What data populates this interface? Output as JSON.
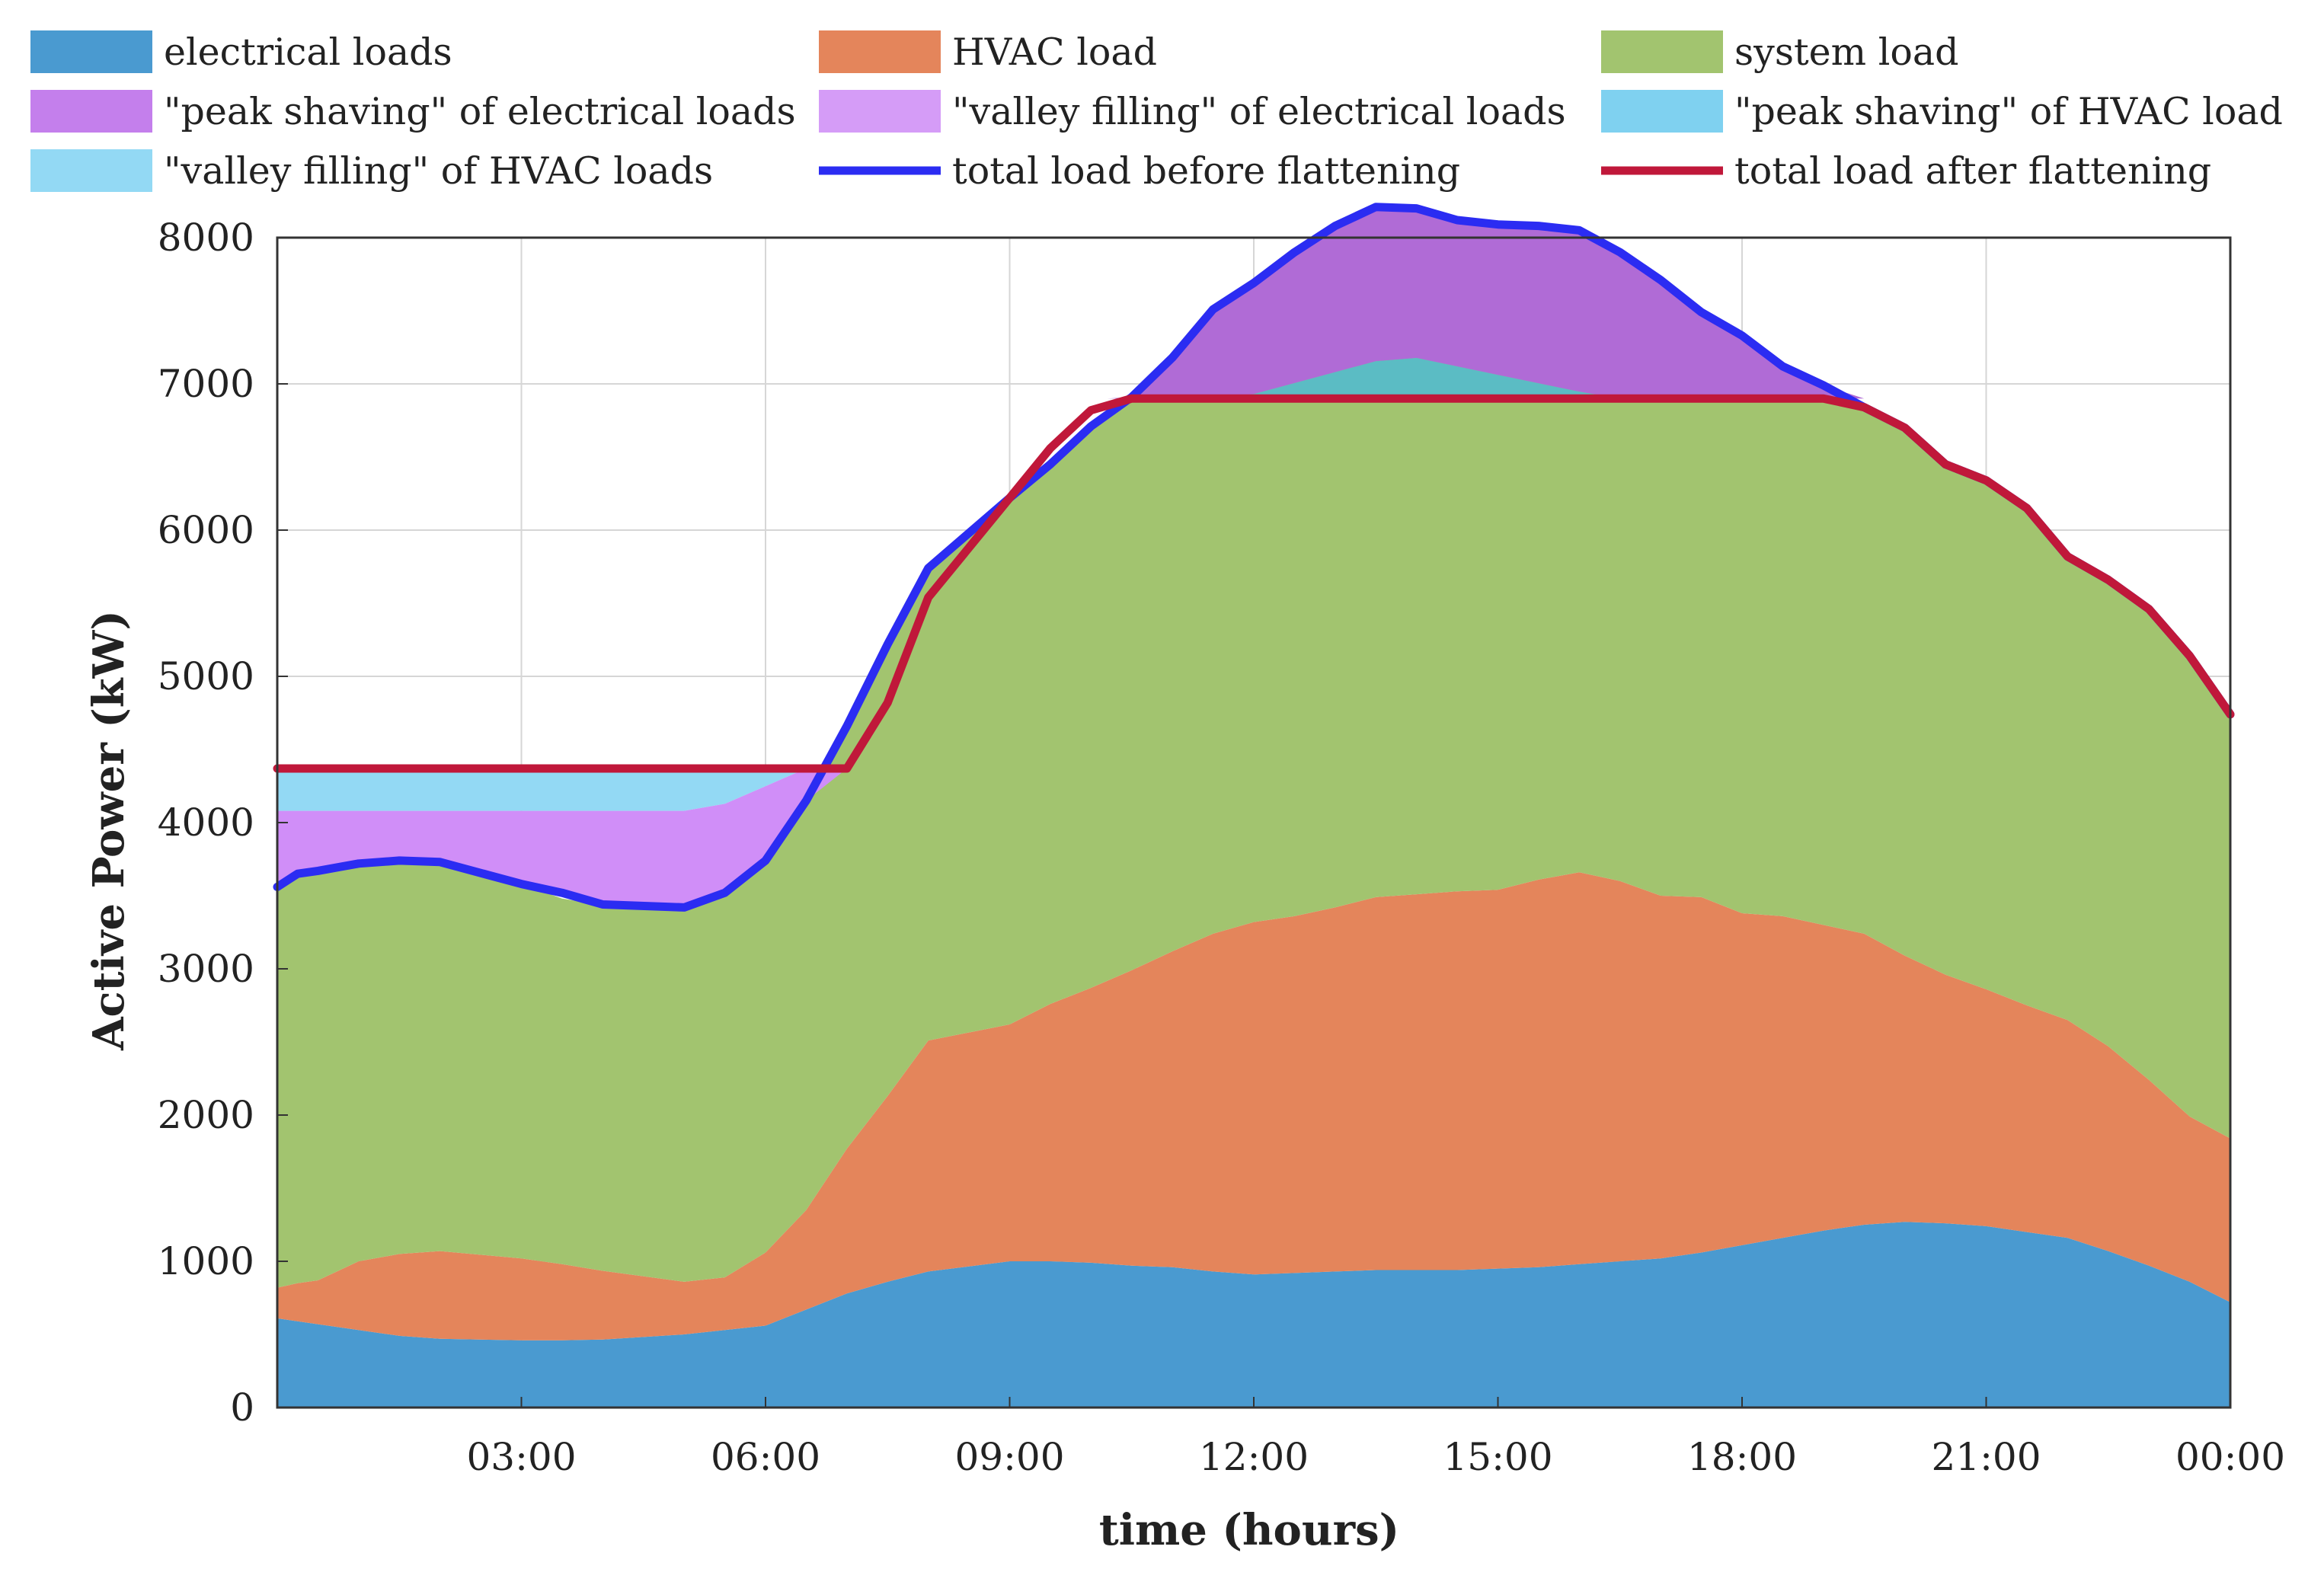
{
  "chart_data": {
    "type": "area",
    "title": "",
    "xlabel": "time (hours)",
    "ylabel": "Active Power (kW)",
    "xlim": [
      0,
      24
    ],
    "ylim": [
      0,
      8000
    ],
    "grid": true,
    "legend_position": "top",
    "x_ticks": [
      {
        "x": 3,
        "label": "03:00"
      },
      {
        "x": 6,
        "label": "06:00"
      },
      {
        "x": 9,
        "label": "09:00"
      },
      {
        "x": 12,
        "label": "12:00"
      },
      {
        "x": 15,
        "label": "15:00"
      },
      {
        "x": 18,
        "label": "18:00"
      },
      {
        "x": 21,
        "label": "21:00"
      },
      {
        "x": 24,
        "label": "00:00"
      }
    ],
    "y_ticks": [
      0,
      1000,
      2000,
      3000,
      4000,
      5000,
      6000,
      7000,
      8000
    ],
    "flat_levels": {
      "valley_fill_level": 4370,
      "peak_shave_level": 6900,
      "valley_until_hour": 7,
      "peak_from_hour": 10.2
    },
    "x": [
      0,
      0.25,
      0.5,
      1,
      1.5,
      2,
      3,
      3.5,
      4,
      5,
      5.5,
      6,
      6.5,
      7,
      7.5,
      8,
      9,
      9.5,
      10,
      10.5,
      11,
      11.5,
      12,
      12.5,
      13,
      13.5,
      14,
      14.5,
      15,
      15.5,
      16,
      16.5,
      17,
      17.5,
      18,
      18.5,
      19,
      19.5,
      20,
      20.5,
      21,
      21.5,
      22,
      22.5,
      23,
      23.5,
      24
    ],
    "series": [
      {
        "name": "electrical loads",
        "color": "#4a9ad0",
        "values": [
          610,
          590,
          570,
          530,
          490,
          470,
          460,
          460,
          465,
          500,
          530,
          560,
          670,
          780,
          860,
          930,
          1000,
          1000,
          990,
          970,
          960,
          930,
          910,
          920,
          930,
          940,
          940,
          940,
          950,
          960,
          980,
          1000,
          1020,
          1060,
          1110,
          1160,
          1210,
          1250,
          1270,
          1260,
          1240,
          1200,
          1160,
          1070,
          970,
          860,
          720
        ]
      },
      {
        "name": "HVAC load",
        "color": "#e4855b",
        "values": [
          210,
          260,
          300,
          470,
          560,
          600,
          560,
          520,
          470,
          360,
          360,
          500,
          680,
          990,
          1270,
          1580,
          1620,
          1760,
          1880,
          2020,
          2160,
          2310,
          2410,
          2440,
          2490,
          2550,
          2570,
          2590,
          2590,
          2650,
          2680,
          2600,
          2480,
          2430,
          2270,
          2200,
          2090,
          1990,
          1820,
          1700,
          1620,
          1550,
          1490,
          1400,
          1270,
          1130,
          1120
        ]
      },
      {
        "name": "system load",
        "color": "#a2c46f",
        "values": [
          2720,
          2800,
          2800,
          2720,
          2690,
          2660,
          2560,
          2500,
          2500,
          2620,
          2610,
          2680,
          2800,
          2890,
          3090,
          3230,
          3600,
          3690,
          3840,
          3920,
          4060,
          4270,
          4370,
          4540,
          4660,
          4720,
          4690,
          4590,
          4550,
          4470,
          4390,
          4300,
          4210,
          4000,
          3950,
          3760,
          3690,
          3590,
          3610,
          3490,
          3480,
          3400,
          3170,
          3190,
          3220,
          3150,
          2900
        ]
      }
    ],
    "total_load_before_flattening": [
      3560,
      3650,
      3670,
      3720,
      3740,
      3730,
      3580,
      3520,
      3440,
      3420,
      3520,
      3740,
      4150,
      4660,
      5220,
      5740,
      6220,
      6450,
      6710,
      6910,
      7180,
      7510,
      7690,
      7900,
      8080,
      8210,
      8200,
      8120,
      8090,
      8080,
      8050,
      7900,
      7710,
      7490,
      7330,
      7120,
      6990,
      6840,
      6700,
      6450,
      6340,
      6150,
      5820,
      5660,
      5460,
      5140,
      4740
    ],
    "total_load_after_flattening": [
      4370,
      4370,
      4370,
      4370,
      4370,
      4370,
      4370,
      4370,
      4370,
      4370,
      4370,
      4370,
      4370,
      4370,
      4820,
      5540,
      6220,
      6560,
      6820,
      6900,
      6900,
      6900,
      6900,
      6900,
      6900,
      6900,
      6900,
      6900,
      6900,
      6900,
      6900,
      6900,
      6900,
      6900,
      6900,
      6900,
      6900,
      6840,
      6700,
      6450,
      6340,
      6150,
      5820,
      5660,
      5460,
      5140,
      4740
    ],
    "legend": [
      {
        "label": "electrical loads",
        "kind": "patch",
        "color": "#4a9ad0"
      },
      {
        "label": "HVAC load",
        "kind": "patch",
        "color": "#e4855b"
      },
      {
        "label": "system load",
        "kind": "patch",
        "color": "#a2c46f"
      },
      {
        "label": "\"peak shaving\" of electrical loads",
        "kind": "patch",
        "color": "#c47fec"
      },
      {
        "label": "\"valley filling\" of electrical loads",
        "kind": "patch",
        "color": "#d59cf7"
      },
      {
        "label": "\"peak shaving\" of HVAC load",
        "kind": "patch",
        "color": "#7fd1f0"
      },
      {
        "label": "\"valley filling\" of HVAC loads",
        "kind": "patch",
        "color": "#93d9f4"
      },
      {
        "label": "total load before flattening",
        "kind": "line",
        "color": "#2b2cf2"
      },
      {
        "label": "total load after flattening",
        "kind": "line",
        "color": "#c0183a"
      }
    ],
    "colors": {
      "peak_shaving_electrical": "#b06bd6",
      "peak_shaving_hvac": "#5bbcc4",
      "valley_filling_electrical": "#d08ef8",
      "valley_filling_hvac": "#93d9f4",
      "total_before": "#2b2cf2",
      "total_after": "#c0183a"
    }
  }
}
